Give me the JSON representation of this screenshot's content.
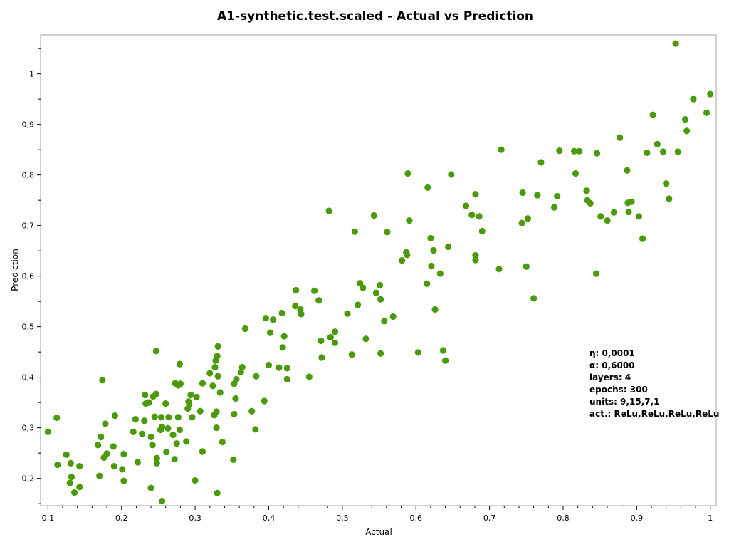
{
  "chart_data": {
    "type": "scatter",
    "title": "A1-synthetic.test.scaled - Actual vs Prediction",
    "xlabel": "Actual",
    "ylabel": "Prediction",
    "xlim": [
      0.09,
      1.008
    ],
    "ylim": [
      0.146,
      1.077
    ],
    "x_ticks": [
      "0,1",
      "0,2",
      "0,3",
      "0,4",
      "0,5",
      "0,6",
      "0,7",
      "0,8",
      "0,9",
      "1"
    ],
    "x_tick_values": [
      0.1,
      0.2,
      0.3,
      0.4,
      0.5,
      0.6,
      0.7,
      0.8,
      0.9,
      1.0
    ],
    "y_ticks": [
      "0,2",
      "0,3",
      "0,4",
      "0,5",
      "0,6",
      "0,7",
      "0,8",
      "0,9",
      "1"
    ],
    "y_tick_values": [
      0.2,
      0.3,
      0.4,
      0.5,
      0.6,
      0.7,
      0.8,
      0.9,
      1.0
    ],
    "grid": false,
    "marker_color": "#4a9a0a",
    "annotation": [
      "η: 0,0001",
      "α: 0,6000",
      "layers: 4",
      "epochs: 300",
      "units: 9,15,7,1",
      "act.: ReLu,ReLu,ReLu,ReLu"
    ],
    "series": [
      {
        "points": [
          [
            0.1,
            0.292
          ],
          [
            0.112,
            0.32
          ],
          [
            0.113,
            0.227
          ],
          [
            0.125,
            0.247
          ],
          [
            0.13,
            0.191
          ],
          [
            0.131,
            0.23
          ],
          [
            0.132,
            0.203
          ],
          [
            0.136,
            0.172
          ],
          [
            0.143,
            0.183
          ],
          [
            0.143,
            0.224
          ],
          [
            0.168,
            0.266
          ],
          [
            0.17,
            0.205
          ],
          [
            0.172,
            0.282
          ],
          [
            0.174,
            0.394
          ],
          [
            0.176,
            0.241
          ],
          [
            0.178,
            0.308
          ],
          [
            0.18,
            0.249
          ],
          [
            0.189,
            0.263
          ],
          [
            0.19,
            0.224
          ],
          [
            0.191,
            0.324
          ],
          [
            0.201,
            0.218
          ],
          [
            0.203,
            0.248
          ],
          [
            0.203,
            0.195
          ],
          [
            0.216,
            0.292
          ],
          [
            0.219,
            0.317
          ],
          [
            0.222,
            0.232
          ],
          [
            0.228,
            0.288
          ],
          [
            0.231,
            0.314
          ],
          [
            0.232,
            0.365
          ],
          [
            0.233,
            0.348
          ],
          [
            0.237,
            0.35
          ],
          [
            0.24,
            0.181
          ],
          [
            0.24,
            0.282
          ],
          [
            0.242,
            0.266
          ],
          [
            0.243,
            0.362
          ],
          [
            0.245,
            0.322
          ],
          [
            0.247,
            0.367
          ],
          [
            0.247,
            0.452
          ],
          [
            0.248,
            0.24
          ],
          [
            0.248,
            0.23
          ],
          [
            0.253,
            0.296
          ],
          [
            0.254,
            0.321
          ],
          [
            0.255,
            0.302
          ],
          [
            0.255,
            0.155
          ],
          [
            0.26,
            0.348
          ],
          [
            0.261,
            0.252
          ],
          [
            0.263,
            0.299
          ],
          [
            0.264,
            0.321
          ],
          [
            0.27,
            0.286
          ],
          [
            0.272,
            0.238
          ],
          [
            0.273,
            0.388
          ],
          [
            0.275,
            0.269
          ],
          [
            0.277,
            0.321
          ],
          [
            0.277,
            0.384
          ],
          [
            0.279,
            0.296
          ],
          [
            0.279,
            0.426
          ],
          [
            0.28,
            0.387
          ],
          [
            0.288,
            0.273
          ],
          [
            0.29,
            0.338
          ],
          [
            0.291,
            0.352
          ],
          [
            0.292,
            0.346
          ],
          [
            0.294,
            0.365
          ],
          [
            0.296,
            0.321
          ],
          [
            0.3,
            0.196
          ],
          [
            0.302,
            0.361
          ],
          [
            0.307,
            0.333
          ],
          [
            0.31,
            0.253
          ],
          [
            0.31,
            0.388
          ],
          [
            0.32,
            0.408
          ],
          [
            0.324,
            0.383
          ],
          [
            0.326,
            0.325
          ],
          [
            0.327,
            0.42
          ],
          [
            0.328,
            0.433
          ],
          [
            0.329,
            0.332
          ],
          [
            0.329,
            0.3
          ],
          [
            0.33,
            0.171
          ],
          [
            0.33,
            0.442
          ],
          [
            0.331,
            0.461
          ],
          [
            0.331,
            0.402
          ],
          [
            0.334,
            0.37
          ],
          [
            0.337,
            0.272
          ],
          [
            0.352,
            0.237
          ],
          [
            0.353,
            0.327
          ],
          [
            0.353,
            0.387
          ],
          [
            0.355,
            0.358
          ],
          [
            0.356,
            0.396
          ],
          [
            0.362,
            0.41
          ],
          [
            0.364,
            0.42
          ],
          [
            0.368,
            0.496
          ],
          [
            0.377,
            0.333
          ],
          [
            0.382,
            0.297
          ],
          [
            0.383,
            0.402
          ],
          [
            0.394,
            0.353
          ],
          [
            0.396,
            0.517
          ],
          [
            0.4,
            0.424
          ],
          [
            0.402,
            0.488
          ],
          [
            0.406,
            0.514
          ],
          [
            0.414,
            0.419
          ],
          [
            0.418,
            0.527
          ],
          [
            0.419,
            0.459
          ],
          [
            0.421,
            0.481
          ],
          [
            0.425,
            0.418
          ],
          [
            0.425,
            0.396
          ],
          [
            0.436,
            0.541
          ],
          [
            0.437,
            0.572
          ],
          [
            0.443,
            0.534
          ],
          [
            0.444,
            0.525
          ],
          [
            0.455,
            0.401
          ],
          [
            0.462,
            0.571
          ],
          [
            0.468,
            0.552
          ],
          [
            0.471,
            0.472
          ],
          [
            0.472,
            0.439
          ],
          [
            0.482,
            0.729
          ],
          [
            0.484,
            0.479
          ],
          [
            0.49,
            0.468
          ],
          [
            0.49,
            0.49
          ],
          [
            0.507,
            0.526
          ],
          [
            0.513,
            0.445
          ],
          [
            0.517,
            0.688
          ],
          [
            0.521,
            0.543
          ],
          [
            0.524,
            0.586
          ],
          [
            0.528,
            0.577
          ],
          [
            0.532,
            0.476
          ],
          [
            0.543,
            0.72
          ],
          [
            0.546,
            0.567
          ],
          [
            0.551,
            0.582
          ],
          [
            0.552,
            0.554
          ],
          [
            0.552,
            0.447
          ],
          [
            0.557,
            0.511
          ],
          [
            0.561,
            0.687
          ],
          [
            0.569,
            0.52
          ],
          [
            0.581,
            0.631
          ],
          [
            0.587,
            0.647
          ],
          [
            0.588,
            0.642
          ],
          [
            0.589,
            0.803
          ],
          [
            0.591,
            0.71
          ],
          [
            0.603,
            0.449
          ],
          [
            0.615,
            0.585
          ],
          [
            0.616,
            0.775
          ],
          [
            0.62,
            0.675
          ],
          [
            0.621,
            0.62
          ],
          [
            0.624,
            0.651
          ],
          [
            0.626,
            0.534
          ],
          [
            0.633,
            0.605
          ],
          [
            0.637,
            0.453
          ],
          [
            0.64,
            0.433
          ],
          [
            0.644,
            0.658
          ],
          [
            0.648,
            0.801
          ],
          [
            0.668,
            0.739
          ],
          [
            0.676,
            0.721
          ],
          [
            0.681,
            0.641
          ],
          [
            0.681,
            0.632
          ],
          [
            0.681,
            0.762
          ],
          [
            0.686,
            0.718
          ],
          [
            0.69,
            0.689
          ],
          [
            0.713,
            0.614
          ],
          [
            0.716,
            0.85
          ],
          [
            0.744,
            0.705
          ],
          [
            0.745,
            0.765
          ],
          [
            0.75,
            0.619
          ],
          [
            0.752,
            0.714
          ],
          [
            0.76,
            0.556
          ],
          [
            0.765,
            0.76
          ],
          [
            0.77,
            0.825
          ],
          [
            0.788,
            0.736
          ],
          [
            0.792,
            0.758
          ],
          [
            0.795,
            0.848
          ],
          [
            0.815,
            0.847
          ],
          [
            0.817,
            0.803
          ],
          [
            0.822,
            0.847
          ],
          [
            0.832,
            0.769
          ],
          [
            0.833,
            0.75
          ],
          [
            0.837,
            0.744
          ],
          [
            0.845,
            0.605
          ],
          [
            0.846,
            0.843
          ],
          [
            0.851,
            0.718
          ],
          [
            0.86,
            0.71
          ],
          [
            0.869,
            0.726
          ],
          [
            0.877,
            0.874
          ],
          [
            0.887,
            0.809
          ],
          [
            0.888,
            0.745
          ],
          [
            0.889,
            0.727
          ],
          [
            0.893,
            0.747
          ],
          [
            0.903,
            0.718
          ],
          [
            0.908,
            0.674
          ],
          [
            0.914,
            0.844
          ],
          [
            0.922,
            0.919
          ],
          [
            0.928,
            0.861
          ],
          [
            0.936,
            0.846
          ],
          [
            0.94,
            0.783
          ],
          [
            0.944,
            0.753
          ],
          [
            0.953,
            1.06
          ],
          [
            0.956,
            0.846
          ],
          [
            0.966,
            0.91
          ],
          [
            0.968,
            0.887
          ],
          [
            0.977,
            0.95
          ],
          [
            0.995,
            0.923
          ],
          [
            1.0,
            0.96
          ]
        ]
      }
    ]
  }
}
